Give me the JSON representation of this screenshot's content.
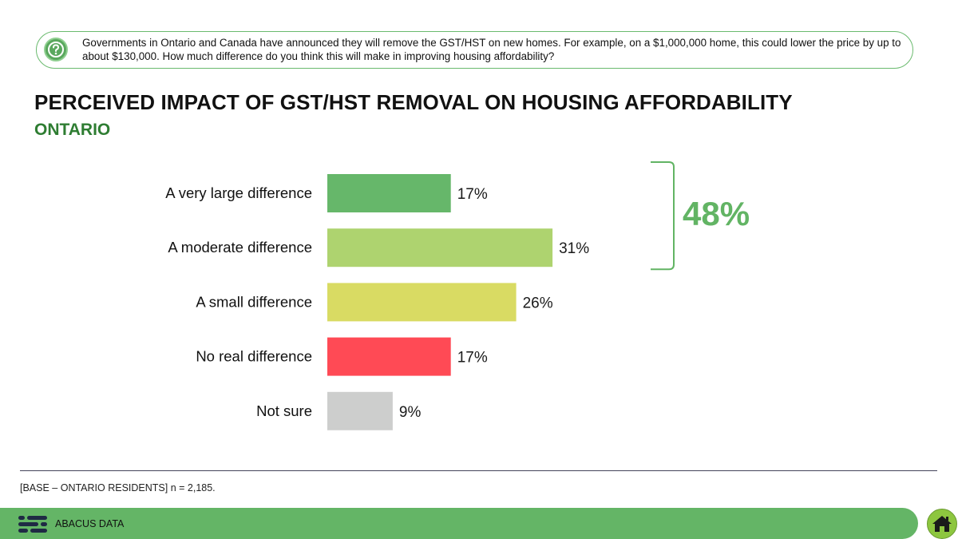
{
  "question": {
    "text": "Governments in Ontario and Canada have announced they will remove the GST/HST on new homes. For example, on a $1,000,000 home, this could lower the price by up to about $130,000. How much difference do you think this will make in improving housing affordability?",
    "icon": "question-icon"
  },
  "title": "PERCEIVED IMPACT OF GST/HST REMOVAL ON HOUSING AFFORDABILITY",
  "subtitle": "ONTARIO",
  "chart_data": {
    "type": "bar",
    "orientation": "horizontal",
    "categories": [
      "A very large difference",
      "A moderate difference",
      "A small difference",
      "No real difference",
      "Not sure"
    ],
    "values": [
      17,
      31,
      26,
      17,
      9
    ],
    "value_labels": [
      "17%",
      "31%",
      "26%",
      "17%",
      "9%"
    ],
    "colors": [
      "#66b76a",
      "#aed36f",
      "#d9db63",
      "#ff4a55",
      "#cdcecd"
    ],
    "xlim": [
      0,
      100
    ],
    "grid": false,
    "bracket": {
      "covers": [
        "A very large difference",
        "A moderate difference"
      ],
      "label": "48%",
      "color": "#62b464"
    }
  },
  "footer": {
    "base_note": "[BASE – ONTARIO RESIDENTS] n = 2,185.",
    "brand": "ABACUS DATA",
    "bar_color": "#64b566",
    "home_icon": "home-icon"
  }
}
